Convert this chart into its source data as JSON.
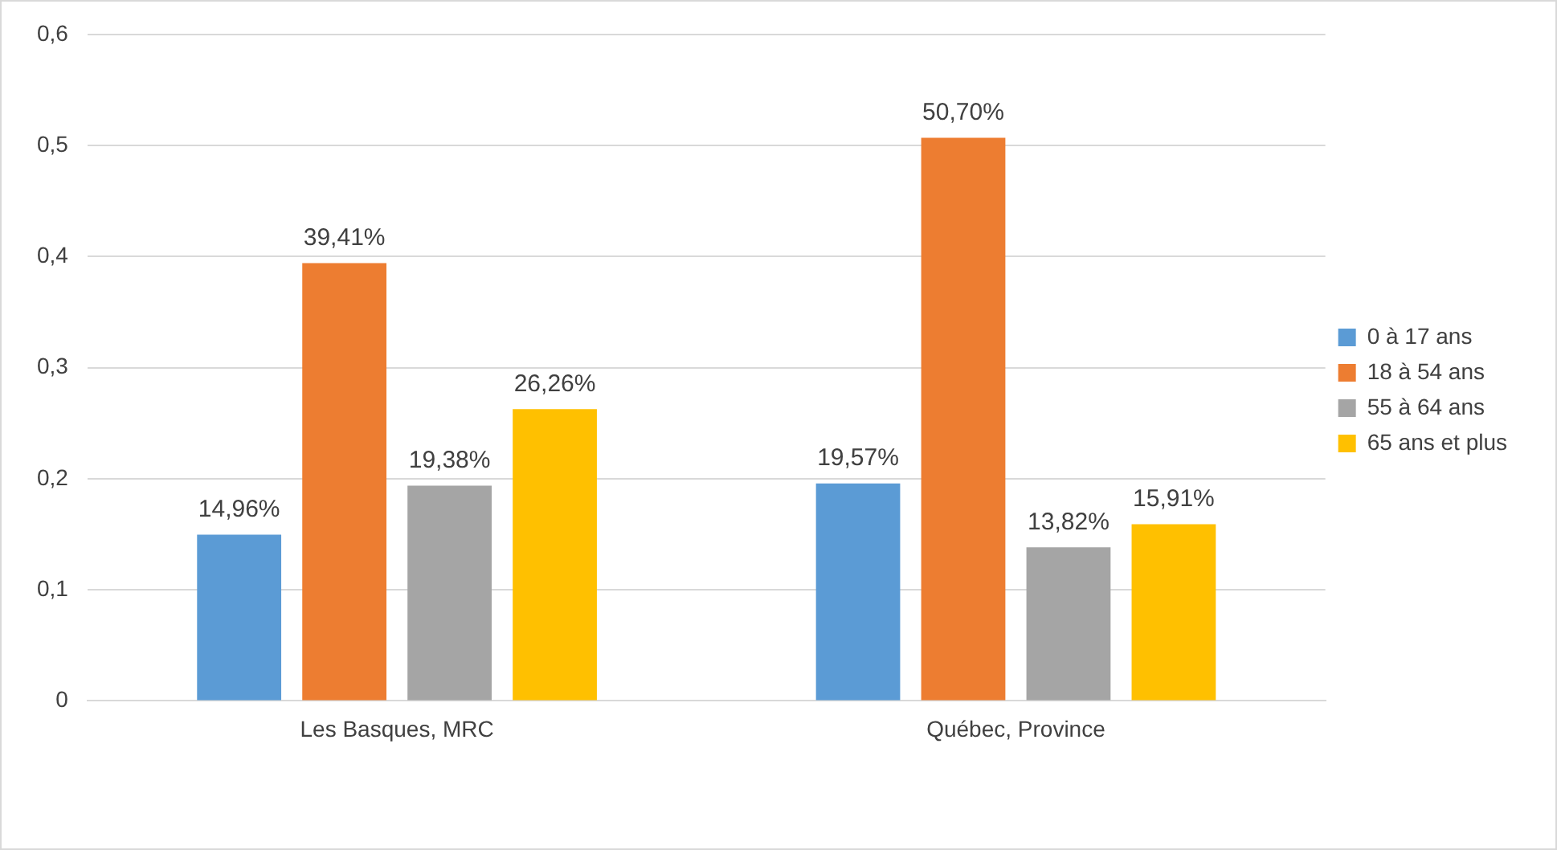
{
  "chart_data": {
    "type": "bar",
    "categories": [
      "Les Basques, MRC",
      "Québec, Province"
    ],
    "series": [
      {
        "name": "0 à 17 ans",
        "color": "#5b9bd5",
        "values": [
          0.1496,
          0.1957
        ],
        "value_labels": [
          "14,96%",
          "19,57%"
        ]
      },
      {
        "name": "18 à 54 ans",
        "color": "#ed7d31",
        "values": [
          0.3941,
          0.507
        ],
        "value_labels": [
          "39,41%",
          "50,70%"
        ]
      },
      {
        "name": "55 à 64 ans",
        "color": "#a5a5a5",
        "values": [
          0.1938,
          0.1382
        ],
        "value_labels": [
          "19,38%",
          "13,82%"
        ]
      },
      {
        "name": "65 ans et plus",
        "color": "#ffc000",
        "values": [
          0.2626,
          0.1591
        ],
        "value_labels": [
          "26,26%",
          "15,91%"
        ]
      }
    ],
    "ylim": [
      0,
      0.6
    ],
    "yticks": [
      0,
      {
        "value": 0.1,
        "label": "0,1"
      },
      {
        "value": 0.2,
        "label": "0,2"
      },
      {
        "value": 0.3,
        "label": "0,3"
      },
      {
        "value": 0.4,
        "label": "0,4"
      },
      {
        "value": 0.5,
        "label": "0,5"
      },
      {
        "value": 0.6,
        "label": "0,6"
      }
    ],
    "grid": "y",
    "legend": "right"
  }
}
